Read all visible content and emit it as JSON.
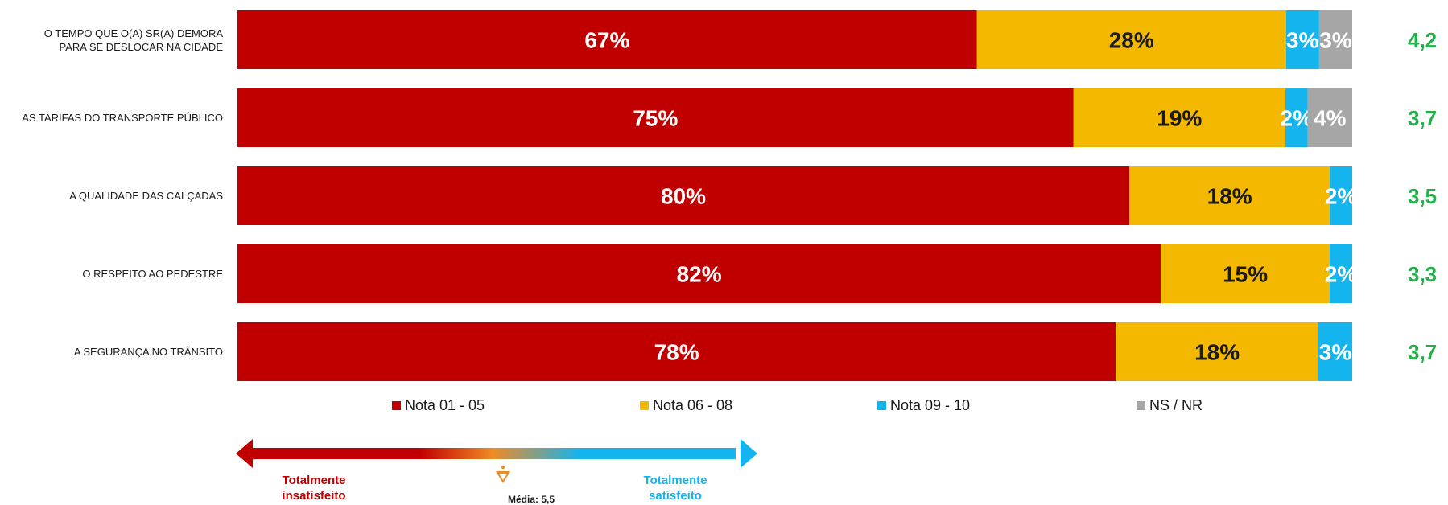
{
  "chart_data": {
    "type": "bar",
    "orientation": "horizontal",
    "stacked": true,
    "normalized": true,
    "categories": [
      "O TEMPO QUE O(A) SR(A) DEMORA\nPARA SE DESLOCAR NA CIDADE",
      "AS TARIFAS DO TRANSPORTE PÚBLICO",
      "A QUALIDADE DAS CALÇADAS",
      "O RESPEITO AO PEDESTRE",
      "A SEGURANÇA NO TRÂNSITO"
    ],
    "series": [
      {
        "name": "Nota 01 - 05",
        "color": "#c00000",
        "values": [
          67,
          75,
          80,
          82,
          78
        ]
      },
      {
        "name": "Nota 06 - 08",
        "color": "#f5b800",
        "values": [
          28,
          19,
          18,
          15,
          18
        ]
      },
      {
        "name": "Nota 09 - 10",
        "color": "#14b4ee",
        "values": [
          3,
          2,
          2,
          2,
          3
        ]
      },
      {
        "name": "NS / NR",
        "color": "#a6a6a6",
        "values": [
          3,
          4,
          0,
          0,
          0
        ]
      }
    ],
    "averages": [
      "4,2",
      "3,7",
      "3,5",
      "3,3",
      "3,7"
    ],
    "grid": false,
    "legend_position": "bottom"
  },
  "scale": {
    "left_label": "Totalmente\ninsatisfeito",
    "right_label": "Totalmente\nsatisfeito",
    "mid_label": "Média: 5,5",
    "left_color": "#c00000",
    "right_color": "#14b4ee",
    "mid_color": "#f08a24"
  }
}
